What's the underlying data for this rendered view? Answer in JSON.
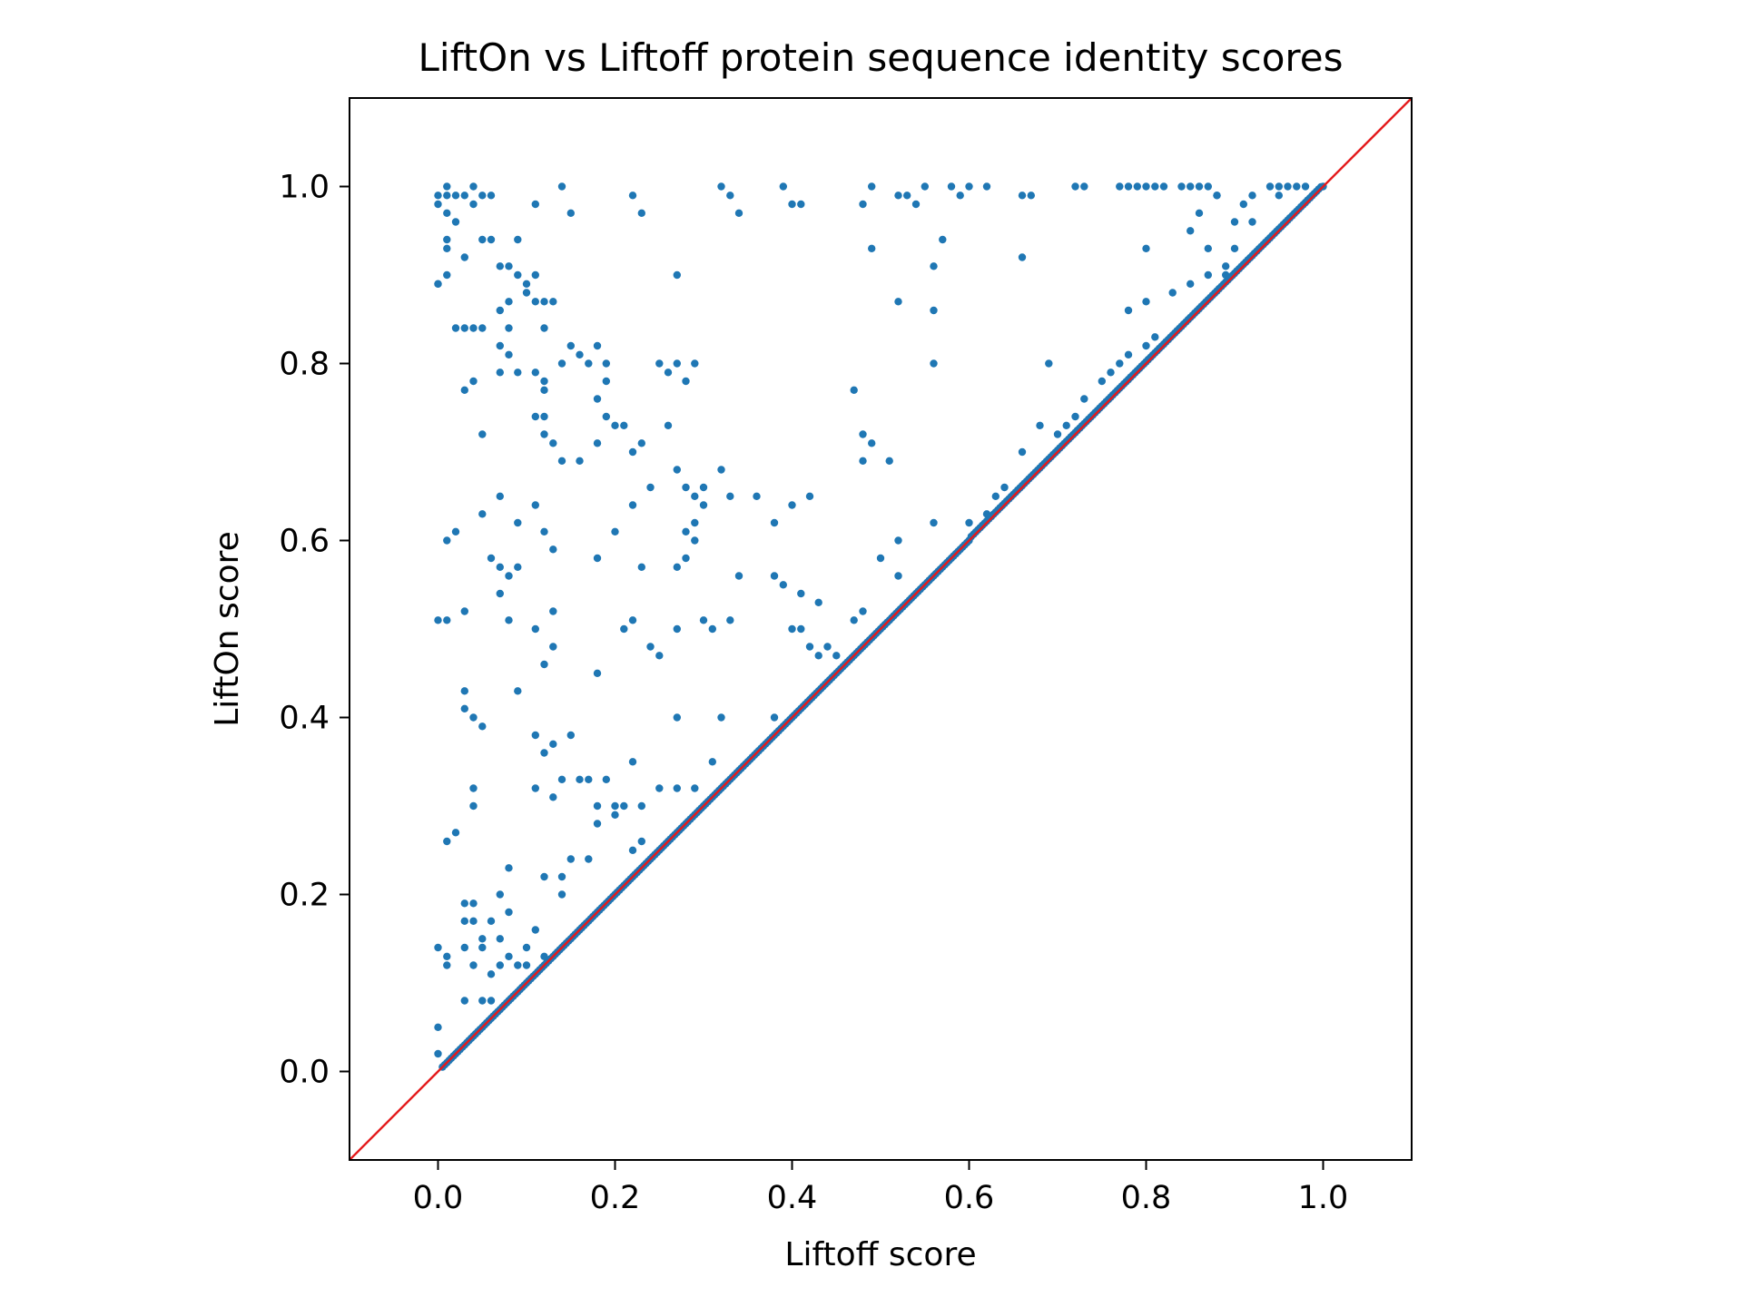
{
  "chart_data": {
    "type": "scatter",
    "title": "LiftOn vs Liftoff protein sequence identity scores",
    "xlabel": "Liftoff score",
    "ylabel": "LiftOn score",
    "xlim": [
      -0.1,
      1.1
    ],
    "ylim": [
      -0.1,
      1.1
    ],
    "xticks": [
      "0.0",
      "0.2",
      "0.4",
      "0.6",
      "0.8",
      "1.0"
    ],
    "yticks": [
      "0.0",
      "0.2",
      "0.4",
      "0.6",
      "0.8",
      "1.0"
    ],
    "grid": false,
    "reference_line": {
      "from": [
        -0.1,
        -0.1
      ],
      "to": [
        1.1,
        1.1
      ],
      "color": "#e41a1c"
    },
    "point_color": "#1f77b4",
    "off_diagonal_points": [
      [
        0.0,
        0.99
      ],
      [
        0.01,
        0.99
      ],
      [
        0.02,
        0.99
      ],
      [
        0.01,
        1.0
      ],
      [
        0.0,
        0.98
      ],
      [
        0.03,
        0.99
      ],
      [
        0.04,
        1.0
      ],
      [
        0.05,
        0.99
      ],
      [
        0.06,
        0.99
      ],
      [
        0.01,
        0.97
      ],
      [
        0.02,
        0.96
      ],
      [
        0.04,
        0.98
      ],
      [
        0.05,
        0.94
      ],
      [
        0.06,
        0.94
      ],
      [
        0.01,
        0.94
      ],
      [
        0.01,
        0.93
      ],
      [
        0.03,
        0.92
      ],
      [
        0.0,
        0.89
      ],
      [
        0.01,
        0.9
      ],
      [
        0.0,
        0.89
      ],
      [
        0.07,
        0.91
      ],
      [
        0.08,
        0.91
      ],
      [
        0.09,
        0.94
      ],
      [
        0.1,
        0.89
      ],
      [
        0.09,
        0.9
      ],
      [
        0.1,
        0.88
      ],
      [
        0.11,
        0.9
      ],
      [
        0.11,
        0.87
      ],
      [
        0.12,
        0.87
      ],
      [
        0.13,
        0.87
      ],
      [
        0.08,
        0.87
      ],
      [
        0.07,
        0.86
      ],
      [
        0.08,
        0.84
      ],
      [
        0.07,
        0.82
      ],
      [
        0.08,
        0.81
      ],
      [
        0.12,
        0.84
      ],
      [
        0.02,
        0.84
      ],
      [
        0.03,
        0.84
      ],
      [
        0.04,
        0.84
      ],
      [
        0.05,
        0.84
      ],
      [
        0.03,
        0.77
      ],
      [
        0.04,
        0.78
      ],
      [
        0.07,
        0.79
      ],
      [
        0.09,
        0.79
      ],
      [
        0.11,
        0.79
      ],
      [
        0.12,
        0.78
      ],
      [
        0.12,
        0.77
      ],
      [
        0.14,
        0.8
      ],
      [
        0.15,
        0.82
      ],
      [
        0.16,
        0.81
      ],
      [
        0.17,
        0.8
      ],
      [
        0.18,
        0.82
      ],
      [
        0.19,
        0.8
      ],
      [
        0.19,
        0.78
      ],
      [
        0.18,
        0.76
      ],
      [
        0.19,
        0.74
      ],
      [
        0.21,
        0.73
      ],
      [
        0.22,
        0.7
      ],
      [
        0.23,
        0.71
      ],
      [
        0.2,
        0.73
      ],
      [
        0.18,
        0.71
      ],
      [
        0.16,
        0.69
      ],
      [
        0.14,
        0.69
      ],
      [
        0.13,
        0.71
      ],
      [
        0.12,
        0.72
      ],
      [
        0.11,
        0.74
      ],
      [
        0.12,
        0.74
      ],
      [
        0.05,
        0.72
      ],
      [
        0.25,
        0.8
      ],
      [
        0.26,
        0.79
      ],
      [
        0.27,
        0.8
      ],
      [
        0.28,
        0.78
      ],
      [
        0.29,
        0.8
      ],
      [
        0.26,
        0.73
      ],
      [
        0.27,
        0.68
      ],
      [
        0.28,
        0.66
      ],
      [
        0.29,
        0.65
      ],
      [
        0.3,
        0.64
      ],
      [
        0.29,
        0.62
      ],
      [
        0.28,
        0.61
      ],
      [
        0.29,
        0.6
      ],
      [
        0.32,
        0.68
      ],
      [
        0.3,
        0.66
      ],
      [
        0.33,
        0.65
      ],
      [
        0.36,
        0.65
      ],
      [
        0.38,
        0.62
      ],
      [
        0.4,
        0.64
      ],
      [
        0.42,
        0.65
      ],
      [
        0.24,
        0.66
      ],
      [
        0.22,
        0.64
      ],
      [
        0.2,
        0.61
      ],
      [
        0.18,
        0.58
      ],
      [
        0.23,
        0.57
      ],
      [
        0.27,
        0.57
      ],
      [
        0.28,
        0.58
      ],
      [
        0.27,
        0.5
      ],
      [
        0.3,
        0.51
      ],
      [
        0.34,
        0.56
      ],
      [
        0.38,
        0.56
      ],
      [
        0.39,
        0.55
      ],
      [
        0.41,
        0.54
      ],
      [
        0.43,
        0.53
      ],
      [
        0.4,
        0.5
      ],
      [
        0.41,
        0.5
      ],
      [
        0.33,
        0.51
      ],
      [
        0.31,
        0.5
      ],
      [
        0.24,
        0.48
      ],
      [
        0.25,
        0.47
      ],
      [
        0.22,
        0.51
      ],
      [
        0.21,
        0.5
      ],
      [
        0.18,
        0.45
      ],
      [
        0.13,
        0.48
      ],
      [
        0.12,
        0.46
      ],
      [
        0.09,
        0.57
      ],
      [
        0.07,
        0.57
      ],
      [
        0.08,
        0.56
      ],
      [
        0.07,
        0.54
      ],
      [
        0.06,
        0.58
      ],
      [
        0.08,
        0.51
      ],
      [
        0.03,
        0.52
      ],
      [
        0.01,
        0.51
      ],
      [
        0.0,
        0.51
      ],
      [
        0.01,
        0.6
      ],
      [
        0.02,
        0.61
      ],
      [
        0.05,
        0.63
      ],
      [
        0.07,
        0.65
      ],
      [
        0.09,
        0.62
      ],
      [
        0.11,
        0.64
      ],
      [
        0.12,
        0.61
      ],
      [
        0.13,
        0.59
      ],
      [
        0.11,
        0.5
      ],
      [
        0.13,
        0.52
      ],
      [
        0.13,
        0.37
      ],
      [
        0.09,
        0.43
      ],
      [
        0.05,
        0.39
      ],
      [
        0.04,
        0.4
      ],
      [
        0.03,
        0.41
      ],
      [
        0.03,
        0.43
      ],
      [
        0.11,
        0.38
      ],
      [
        0.12,
        0.36
      ],
      [
        0.14,
        0.33
      ],
      [
        0.16,
        0.33
      ],
      [
        0.17,
        0.33
      ],
      [
        0.15,
        0.38
      ],
      [
        0.19,
        0.33
      ],
      [
        0.18,
        0.3
      ],
      [
        0.2,
        0.3
      ],
      [
        0.21,
        0.3
      ],
      [
        0.22,
        0.35
      ],
      [
        0.23,
        0.3
      ],
      [
        0.25,
        0.32
      ],
      [
        0.27,
        0.32
      ],
      [
        0.29,
        0.32
      ],
      [
        0.31,
        0.35
      ],
      [
        0.27,
        0.4
      ],
      [
        0.32,
        0.4
      ],
      [
        0.38,
        0.4
      ],
      [
        0.22,
        0.25
      ],
      [
        0.23,
        0.26
      ],
      [
        0.2,
        0.29
      ],
      [
        0.18,
        0.28
      ],
      [
        0.17,
        0.24
      ],
      [
        0.15,
        0.24
      ],
      [
        0.14,
        0.2
      ],
      [
        0.12,
        0.22
      ],
      [
        0.11,
        0.32
      ],
      [
        0.13,
        0.31
      ],
      [
        0.04,
        0.32
      ],
      [
        0.04,
        0.3
      ],
      [
        0.01,
        0.26
      ],
      [
        0.02,
        0.27
      ],
      [
        0.03,
        0.19
      ],
      [
        0.04,
        0.19
      ],
      [
        0.07,
        0.2
      ],
      [
        0.08,
        0.18
      ],
      [
        0.06,
        0.17
      ],
      [
        0.07,
        0.15
      ],
      [
        0.08,
        0.13
      ],
      [
        0.07,
        0.12
      ],
      [
        0.06,
        0.11
      ],
      [
        0.05,
        0.14
      ],
      [
        0.04,
        0.17
      ],
      [
        0.03,
        0.17
      ],
      [
        0.05,
        0.15
      ],
      [
        0.03,
        0.14
      ],
      [
        0.01,
        0.13
      ],
      [
        0.0,
        0.14
      ],
      [
        0.01,
        0.12
      ],
      [
        0.04,
        0.12
      ],
      [
        0.1,
        0.14
      ],
      [
        0.09,
        0.12
      ],
      [
        0.1,
        0.12
      ],
      [
        0.12,
        0.13
      ],
      [
        0.11,
        0.16
      ],
      [
        0.06,
        0.08
      ],
      [
        0.05,
        0.08
      ],
      [
        0.03,
        0.08
      ],
      [
        0.0,
        0.05
      ],
      [
        0.0,
        0.02
      ],
      [
        0.08,
        0.23
      ],
      [
        0.14,
        0.22
      ],
      [
        0.27,
        0.9
      ],
      [
        0.22,
        0.99
      ],
      [
        0.23,
        0.97
      ],
      [
        0.33,
        0.99
      ],
      [
        0.32,
        1.0
      ],
      [
        0.34,
        0.97
      ],
      [
        0.39,
        1.0
      ],
      [
        0.4,
        0.98
      ],
      [
        0.41,
        0.98
      ],
      [
        0.48,
        0.98
      ],
      [
        0.49,
        1.0
      ],
      [
        0.52,
        0.99
      ],
      [
        0.53,
        0.99
      ],
      [
        0.54,
        0.98
      ],
      [
        0.55,
        1.0
      ],
      [
        0.58,
        1.0
      ],
      [
        0.59,
        0.99
      ],
      [
        0.6,
        1.0
      ],
      [
        0.62,
        1.0
      ],
      [
        0.66,
        0.99
      ],
      [
        0.67,
        0.99
      ],
      [
        0.72,
        1.0
      ],
      [
        0.73,
        1.0
      ],
      [
        0.77,
        1.0
      ],
      [
        0.78,
        1.0
      ],
      [
        0.79,
        1.0
      ],
      [
        0.8,
        1.0
      ],
      [
        0.81,
        1.0
      ],
      [
        0.82,
        1.0
      ],
      [
        0.84,
        1.0
      ],
      [
        0.85,
        1.0
      ],
      [
        0.86,
        1.0
      ],
      [
        0.87,
        1.0
      ],
      [
        0.88,
        0.99
      ],
      [
        0.14,
        1.0
      ],
      [
        0.15,
        0.97
      ],
      [
        0.11,
        0.98
      ],
      [
        0.49,
        0.93
      ],
      [
        0.52,
        0.87
      ],
      [
        0.56,
        0.91
      ],
      [
        0.57,
        0.94
      ],
      [
        0.56,
        0.86
      ],
      [
        0.56,
        0.8
      ],
      [
        0.66,
        0.92
      ],
      [
        0.69,
        0.8
      ],
      [
        0.8,
        0.93
      ],
      [
        0.85,
        0.95
      ],
      [
        0.88,
        0.99
      ],
      [
        0.86,
        0.97
      ],
      [
        0.9,
        0.96
      ],
      [
        0.91,
        0.98
      ],
      [
        0.87,
        0.93
      ],
      [
        0.89,
        0.91
      ],
      [
        0.92,
        0.99
      ],
      [
        0.94,
        1.0
      ],
      [
        0.95,
        1.0
      ],
      [
        0.96,
        1.0
      ],
      [
        0.97,
        1.0
      ],
      [
        0.98,
        1.0
      ],
      [
        0.9,
        0.93
      ],
      [
        0.89,
        0.9
      ],
      [
        0.92,
        0.96
      ],
      [
        0.95,
        0.99
      ],
      [
        0.85,
        0.89
      ],
      [
        0.87,
        0.9
      ],
      [
        0.83,
        0.88
      ],
      [
        0.8,
        0.87
      ],
      [
        0.78,
        0.86
      ],
      [
        0.81,
        0.83
      ],
      [
        0.8,
        0.82
      ],
      [
        0.77,
        0.8
      ],
      [
        0.78,
        0.81
      ],
      [
        0.76,
        0.79
      ],
      [
        0.75,
        0.78
      ],
      [
        0.73,
        0.76
      ],
      [
        0.72,
        0.74
      ],
      [
        0.71,
        0.73
      ],
      [
        0.7,
        0.72
      ],
      [
        0.68,
        0.73
      ],
      [
        0.66,
        0.7
      ],
      [
        0.63,
        0.65
      ],
      [
        0.64,
        0.66
      ],
      [
        0.62,
        0.63
      ],
      [
        0.6,
        0.62
      ],
      [
        0.56,
        0.62
      ],
      [
        0.52,
        0.6
      ],
      [
        0.5,
        0.58
      ],
      [
        0.52,
        0.56
      ],
      [
        0.48,
        0.52
      ],
      [
        0.47,
        0.51
      ],
      [
        0.44,
        0.48
      ],
      [
        0.43,
        0.47
      ],
      [
        0.42,
        0.48
      ],
      [
        0.45,
        0.47
      ],
      [
        0.48,
        0.72
      ],
      [
        0.49,
        0.71
      ],
      [
        0.48,
        0.69
      ],
      [
        0.51,
        0.69
      ],
      [
        0.47,
        0.77
      ]
    ],
    "diagonal_sample_step": 0.0025
  }
}
